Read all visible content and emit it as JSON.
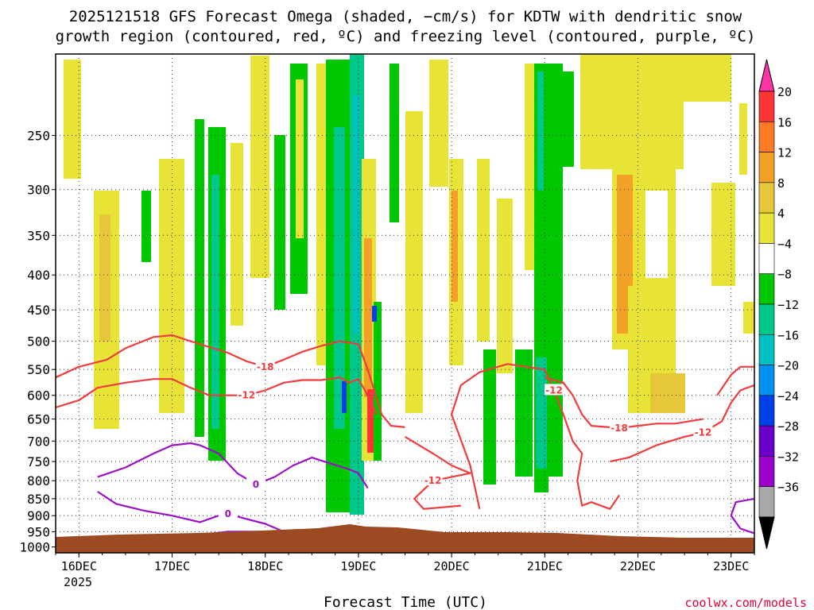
{
  "chart_data": {
    "type": "heatmap",
    "title_line1": "2025121518 GFS Forecast Omega (shaded, −cm/s) for KDTW with dendritic snow",
    "title_line2": "growth region (contoured, red, ºC) and freezing level (contoured, purple, ºC)",
    "xlabel": "Forecast Time (UTC)",
    "credit": "coolwx.com/models",
    "x_ticks": [
      "16DEC",
      "17DEC",
      "18DEC",
      "19DEC",
      "20DEC",
      "21DEC",
      "22DEC",
      "23DEC"
    ],
    "x_year": "2025",
    "x_range_days": [
      15.75,
      23.25
    ],
    "y_ticks": [
      "250",
      "300",
      "350",
      "400",
      "450",
      "500",
      "550",
      "600",
      "650",
      "700",
      "750",
      "800",
      "850",
      "900",
      "950",
      "1000"
    ],
    "y_values": [
      250,
      300,
      350,
      400,
      450,
      500,
      550,
      600,
      650,
      700,
      750,
      800,
      850,
      900,
      950,
      1000
    ],
    "y_range_hpa": [
      190,
      1020
    ],
    "y_scale": "log-pressure (inverted)",
    "grid": true,
    "colorbar": {
      "labels": [
        "20",
        "16",
        "12",
        "8",
        "4",
        "−4",
        "−8",
        "−12",
        "−16",
        "−20",
        "−24",
        "−28",
        "−32",
        "−36"
      ],
      "colors": [
        "#ff33a6",
        "#ff3535",
        "#ff7a24",
        "#f2a028",
        "#e7c73a",
        "#e8e337",
        "#ffffff",
        "#00c800",
        "#00c88a",
        "#00c0c0",
        "#0090f0",
        "#0040e8",
        "#6a00c8",
        "#9a00cc",
        "#a8a8a8",
        "#000000"
      ]
    },
    "dgz_contours": [
      {
        "label": "-18",
        "points": [
          [
            15.75,
            565
          ],
          [
            16.0,
            545
          ],
          [
            16.3,
            532
          ],
          [
            16.5,
            512
          ],
          [
            16.8,
            493
          ],
          [
            17.0,
            490
          ],
          [
            17.2,
            500
          ],
          [
            17.4,
            510
          ],
          [
            17.6,
            520
          ],
          [
            17.8,
            535
          ],
          [
            18.0,
            545
          ],
          [
            18.2,
            532
          ],
          [
            18.4,
            518
          ],
          [
            18.6,
            508
          ],
          [
            18.8,
            500
          ],
          [
            19.0,
            505
          ],
          [
            19.1,
            550
          ],
          [
            19.25,
            640
          ],
          [
            19.35,
            665
          ],
          [
            19.5,
            668
          ]
        ]
      },
      {
        "label": "-12",
        "points": [
          [
            15.75,
            625
          ],
          [
            16.0,
            610
          ],
          [
            16.2,
            585
          ],
          [
            16.5,
            575
          ],
          [
            16.8,
            568
          ],
          [
            17.0,
            568
          ],
          [
            17.2,
            585
          ],
          [
            17.4,
            600
          ],
          [
            17.6,
            600
          ],
          [
            17.8,
            600
          ],
          [
            18.0,
            590
          ],
          [
            18.2,
            575
          ],
          [
            18.4,
            570
          ],
          [
            18.6,
            570
          ],
          [
            18.8,
            565
          ],
          [
            18.9,
            575
          ],
          [
            19.0,
            568
          ],
          [
            19.1,
            600
          ],
          [
            19.2,
            640
          ]
        ]
      },
      {
        "label": "-12",
        "points": [
          [
            19.5,
            690
          ],
          [
            19.8,
            730
          ],
          [
            20.0,
            760
          ],
          [
            20.2,
            780
          ],
          [
            19.8,
            800
          ],
          [
            19.6,
            850
          ],
          [
            19.7,
            880
          ],
          [
            20.1,
            870
          ]
        ]
      },
      {
        "label": "-12",
        "points": [
          [
            20.3,
            880
          ],
          [
            20.2,
            760
          ],
          [
            20.0,
            640
          ],
          [
            20.1,
            580
          ],
          [
            20.3,
            555
          ],
          [
            20.6,
            540
          ],
          [
            20.8,
            545
          ],
          [
            21.0,
            550
          ],
          [
            21.1,
            590
          ],
          [
            21.2,
            640
          ],
          [
            21.3,
            700
          ],
          [
            21.4,
            730
          ],
          [
            21.35,
            800
          ],
          [
            21.4,
            870
          ],
          [
            21.5,
            860
          ],
          [
            21.7,
            880
          ],
          [
            21.8,
            840
          ]
        ]
      },
      {
        "label": "-18",
        "points": [
          [
            21.0,
            565
          ],
          [
            21.2,
            575
          ],
          [
            21.3,
            600
          ],
          [
            21.4,
            640
          ],
          [
            21.5,
            665
          ],
          [
            21.8,
            670
          ],
          [
            22.0,
            665
          ],
          [
            22.2,
            660
          ],
          [
            22.4,
            660
          ],
          [
            22.7,
            650
          ]
        ]
      },
      {
        "label": "-12",
        "points": [
          [
            21.7,
            750
          ],
          [
            21.9,
            740
          ],
          [
            22.2,
            710
          ],
          [
            22.5,
            690
          ],
          [
            22.7,
            680
          ],
          [
            22.9,
            655
          ],
          [
            23.0,
            615
          ],
          [
            23.1,
            590
          ],
          [
            23.25,
            580
          ]
        ]
      },
      {
        "label": "",
        "points": [
          [
            22.85,
            600
          ],
          [
            23.0,
            560
          ],
          [
            23.1,
            545
          ],
          [
            23.25,
            545
          ]
        ]
      }
    ],
    "freezing_contours": [
      {
        "label": "0",
        "points": [
          [
            16.2,
            790
          ],
          [
            16.5,
            765
          ],
          [
            16.8,
            730
          ],
          [
            17.0,
            710
          ],
          [
            17.2,
            705
          ],
          [
            17.3,
            710
          ],
          [
            17.5,
            730
          ],
          [
            17.7,
            780
          ],
          [
            17.9,
            810
          ],
          [
            18.1,
            790
          ],
          [
            18.3,
            760
          ],
          [
            18.5,
            740
          ],
          [
            18.7,
            755
          ],
          [
            18.9,
            770
          ],
          [
            19.0,
            780
          ],
          [
            19.1,
            820
          ]
        ]
      },
      {
        "label": "0",
        "points": [
          [
            16.2,
            830
          ],
          [
            16.4,
            865
          ],
          [
            16.7,
            885
          ],
          [
            17.0,
            900
          ],
          [
            17.3,
            920
          ],
          [
            17.5,
            900
          ],
          [
            17.6,
            895
          ],
          [
            17.8,
            910
          ],
          [
            18.0,
            925
          ],
          [
            18.2,
            950
          ],
          [
            17.6,
            950
          ],
          [
            17.3,
            960
          ],
          [
            17.0,
            975
          ]
        ]
      },
      {
        "label": "0",
        "points": [
          [
            18.3,
            990
          ],
          [
            18.4,
            970
          ],
          [
            18.5,
            960
          ],
          [
            18.6,
            975
          ]
        ]
      },
      {
        "label": "",
        "points": [
          [
            20.8,
            985
          ],
          [
            21.0,
            970
          ],
          [
            21.2,
            975
          ],
          [
            21.3,
            985
          ]
        ]
      },
      {
        "label": "",
        "points": [
          [
            23.25,
            850
          ],
          [
            23.05,
            860
          ],
          [
            23.0,
            900
          ],
          [
            23.1,
            940
          ],
          [
            23.25,
            955
          ]
        ]
      }
    ]
  }
}
